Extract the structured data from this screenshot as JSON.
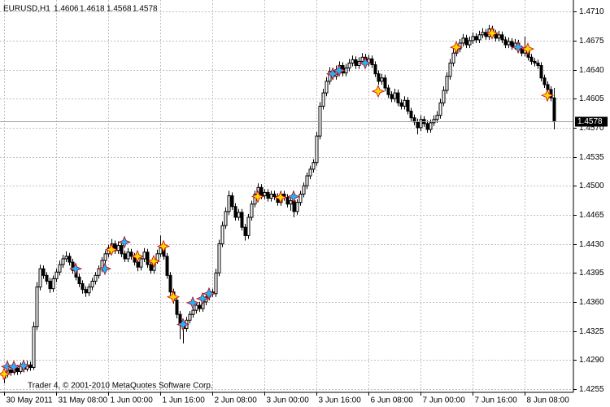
{
  "chart_data": {
    "type": "candlestick",
    "symbol": "EURUSD,H1",
    "watermark": "Trader 4, © 2001-2010 MetaQuotes Software Corp.",
    "last_price": 1.4578,
    "xlim": [
      -1.25,
      175
    ],
    "ylim": [
      1.4251,
      1.4724
    ],
    "yticks": [
      {
        "value": 1.471,
        "label": "1.4710"
      },
      1.4675,
      {
        "value": 1.464,
        "label": "1.4640"
      },
      1.4605,
      {
        "value": 1.457,
        "label": "1.4570"
      },
      1.4535,
      {
        "value": 1.45,
        "label": "1.4500"
      },
      1.4465,
      {
        "value": 1.443,
        "label": "1.4430"
      },
      1.4395,
      {
        "value": 1.436,
        "label": "1.4360"
      },
      1.4325,
      {
        "value": 1.429,
        "label": "1.4290"
      },
      1.4255
    ],
    "xticks": [
      {
        "value": 0,
        "label": "30 May 2011"
      },
      {
        "value": 16,
        "label": "31 May 08:00"
      },
      {
        "value": 32,
        "label": "1 Jun 00:00"
      },
      {
        "value": 48,
        "label": "1 Jun 16:00"
      },
      {
        "value": 64,
        "label": "2 Jun 08:00"
      },
      {
        "value": 80,
        "label": "3 Jun 00:00"
      },
      {
        "value": 96,
        "label": "3 Jun 16:00"
      },
      {
        "value": 112,
        "label": "6 Jun 08:00"
      },
      {
        "value": 128,
        "label": "7 Jun 00:00"
      },
      {
        "value": 144,
        "label": "7 Jun 16:00"
      },
      {
        "value": 160,
        "label": "8 Jun 08:00"
      }
    ],
    "grid": true,
    "up_color": "#ffffff",
    "down_color": "#000000",
    "ohlc": [
      [
        1.4268,
        1.4277,
        1.4262,
        1.4273
      ],
      [
        1.4273,
        1.4282,
        1.4269,
        1.4278
      ],
      [
        1.4278,
        1.4283,
        1.4271,
        1.4275
      ],
      [
        1.4275,
        1.4285,
        1.4272,
        1.428
      ],
      [
        1.428,
        1.4284,
        1.4272,
        1.4276
      ],
      [
        1.4276,
        1.4287,
        1.4273,
        1.4282
      ],
      [
        1.4282,
        1.4286,
        1.4275,
        1.4279
      ],
      [
        1.4279,
        1.4289,
        1.4276,
        1.4284
      ],
      [
        1.4284,
        1.4288,
        1.4277,
        1.4281
      ],
      [
        1.4281,
        1.4336,
        1.4278,
        1.433
      ],
      [
        1.433,
        1.4384,
        1.4326,
        1.4378
      ],
      [
        1.4378,
        1.4405,
        1.4374,
        1.44
      ],
      [
        1.44,
        1.4404,
        1.4388,
        1.4392
      ],
      [
        1.4392,
        1.4396,
        1.4381,
        1.4385
      ],
      [
        1.4385,
        1.4389,
        1.4371,
        1.4376
      ],
      [
        1.4376,
        1.4392,
        1.4372,
        1.4388
      ],
      [
        1.4388,
        1.44,
        1.4384,
        1.4396
      ],
      [
        1.4396,
        1.441,
        1.4392,
        1.4405
      ],
      [
        1.4405,
        1.4417,
        1.4401,
        1.4412
      ],
      [
        1.4412,
        1.4421,
        1.4408,
        1.4415
      ],
      [
        1.4415,
        1.4419,
        1.4404,
        1.4408
      ],
      [
        1.4408,
        1.4412,
        1.4394,
        1.4398
      ],
      [
        1.4398,
        1.4402,
        1.4386,
        1.439
      ],
      [
        1.439,
        1.4394,
        1.4378,
        1.4382
      ],
      [
        1.4382,
        1.4386,
        1.437,
        1.4375
      ],
      [
        1.4375,
        1.4379,
        1.4366,
        1.4371
      ],
      [
        1.4371,
        1.4382,
        1.4367,
        1.4378
      ],
      [
        1.4378,
        1.4389,
        1.4374,
        1.4385
      ],
      [
        1.4385,
        1.4396,
        1.4381,
        1.4392
      ],
      [
        1.4392,
        1.4404,
        1.4388,
        1.44
      ],
      [
        1.44,
        1.4414,
        1.4396,
        1.441
      ],
      [
        1.441,
        1.4422,
        1.4406,
        1.4418
      ],
      [
        1.4418,
        1.4429,
        1.4414,
        1.4425
      ],
      [
        1.4425,
        1.4436,
        1.4421,
        1.443
      ],
      [
        1.443,
        1.4434,
        1.4418,
        1.4422
      ],
      [
        1.4422,
        1.4433,
        1.4418,
        1.4428
      ],
      [
        1.4428,
        1.4432,
        1.4414,
        1.4418
      ],
      [
        1.4418,
        1.4422,
        1.4408,
        1.4412
      ],
      [
        1.4412,
        1.4425,
        1.4408,
        1.442
      ],
      [
        1.442,
        1.4424,
        1.4411,
        1.4415
      ],
      [
        1.4415,
        1.4419,
        1.4404,
        1.4408
      ],
      [
        1.4408,
        1.4412,
        1.4397,
        1.4402
      ],
      [
        1.4402,
        1.4416,
        1.4398,
        1.4412
      ],
      [
        1.4412,
        1.4425,
        1.4408,
        1.442
      ],
      [
        1.442,
        1.4424,
        1.4401,
        1.4405
      ],
      [
        1.4405,
        1.4409,
        1.4394,
        1.4398
      ],
      [
        1.4398,
        1.4414,
        1.4394,
        1.441
      ],
      [
        1.441,
        1.4423,
        1.4406,
        1.4418
      ],
      [
        1.4418,
        1.444,
        1.4414,
        1.4425
      ],
      [
        1.4425,
        1.4429,
        1.4411,
        1.4415
      ],
      [
        1.4415,
        1.4419,
        1.4388,
        1.4392
      ],
      [
        1.4392,
        1.4396,
        1.4368,
        1.4372
      ],
      [
        1.4372,
        1.4376,
        1.4358,
        1.4362
      ],
      [
        1.4362,
        1.4366,
        1.434,
        1.4345
      ],
      [
        1.4345,
        1.4349,
        1.4315,
        1.4332
      ],
      [
        1.4332,
        1.4336,
        1.431,
        1.4328
      ],
      [
        1.4328,
        1.4342,
        1.4324,
        1.4338
      ],
      [
        1.4338,
        1.4349,
        1.4334,
        1.4345
      ],
      [
        1.4345,
        1.4354,
        1.4341,
        1.435
      ],
      [
        1.435,
        1.436,
        1.4346,
        1.4356
      ],
      [
        1.4356,
        1.436,
        1.4348,
        1.4352
      ],
      [
        1.4352,
        1.4364,
        1.4348,
        1.436
      ],
      [
        1.436,
        1.437,
        1.4356,
        1.4366
      ],
      [
        1.4366,
        1.4376,
        1.4362,
        1.4372
      ],
      [
        1.4372,
        1.4376,
        1.4366,
        1.437
      ],
      [
        1.437,
        1.44,
        1.4366,
        1.4395
      ],
      [
        1.4395,
        1.4435,
        1.4391,
        1.443
      ],
      [
        1.443,
        1.4457,
        1.4426,
        1.4452
      ],
      [
        1.4452,
        1.4474,
        1.4448,
        1.4469
      ],
      [
        1.4469,
        1.4494,
        1.4465,
        1.4488
      ],
      [
        1.4488,
        1.4492,
        1.4471,
        1.4475
      ],
      [
        1.4475,
        1.4479,
        1.4458,
        1.4462
      ],
      [
        1.4462,
        1.4472,
        1.4458,
        1.4468
      ],
      [
        1.4468,
        1.4472,
        1.4446,
        1.445
      ],
      [
        1.445,
        1.4454,
        1.4434,
        1.444
      ],
      [
        1.444,
        1.4466,
        1.4436,
        1.4462
      ],
      [
        1.4462,
        1.4482,
        1.4458,
        1.4478
      ],
      [
        1.4478,
        1.4494,
        1.4474,
        1.449
      ],
      [
        1.449,
        1.4503,
        1.4486,
        1.4498
      ],
      [
        1.4498,
        1.4502,
        1.4484,
        1.4488
      ],
      [
        1.4488,
        1.4496,
        1.4484,
        1.4492
      ],
      [
        1.4492,
        1.4496,
        1.4481,
        1.4485
      ],
      [
        1.4485,
        1.4494,
        1.4481,
        1.449
      ],
      [
        1.449,
        1.4494,
        1.4483,
        1.4487
      ],
      [
        1.4487,
        1.4491,
        1.4476,
        1.448
      ],
      [
        1.448,
        1.4494,
        1.4476,
        1.449
      ],
      [
        1.449,
        1.4494,
        1.4482,
        1.4486
      ],
      [
        1.4486,
        1.449,
        1.4474,
        1.4478
      ],
      [
        1.4478,
        1.4486,
        1.447,
        1.4482
      ],
      [
        1.4482,
        1.4486,
        1.4462,
        1.4469
      ],
      [
        1.4469,
        1.4484,
        1.4465,
        1.448
      ],
      [
        1.448,
        1.4494,
        1.4476,
        1.449
      ],
      [
        1.449,
        1.4504,
        1.4486,
        1.45
      ],
      [
        1.45,
        1.4516,
        1.4496,
        1.4512
      ],
      [
        1.4512,
        1.4524,
        1.4508,
        1.452
      ],
      [
        1.452,
        1.4532,
        1.4516,
        1.4528
      ],
      [
        1.4528,
        1.4565,
        1.4524,
        1.456
      ],
      [
        1.456,
        1.4601,
        1.4556,
        1.4596
      ],
      [
        1.4596,
        1.4617,
        1.4592,
        1.4612
      ],
      [
        1.4612,
        1.4631,
        1.4608,
        1.4626
      ],
      [
        1.4626,
        1.4643,
        1.4622,
        1.4638
      ],
      [
        1.4638,
        1.4642,
        1.4628,
        1.4632
      ],
      [
        1.4632,
        1.4645,
        1.4628,
        1.464
      ],
      [
        1.464,
        1.465,
        1.4636,
        1.4645
      ],
      [
        1.4645,
        1.4649,
        1.4632,
        1.4636
      ],
      [
        1.4636,
        1.4647,
        1.4632,
        1.4642
      ],
      [
        1.4642,
        1.4653,
        1.4638,
        1.4648
      ],
      [
        1.4648,
        1.4657,
        1.4644,
        1.4652
      ],
      [
        1.4652,
        1.4656,
        1.4641,
        1.4645
      ],
      [
        1.4645,
        1.4655,
        1.4641,
        1.465
      ],
      [
        1.465,
        1.466,
        1.4646,
        1.4655
      ],
      [
        1.4655,
        1.4659,
        1.4644,
        1.4648
      ],
      [
        1.4648,
        1.4658,
        1.4644,
        1.4653
      ],
      [
        1.4653,
        1.4657,
        1.4642,
        1.4646
      ],
      [
        1.4646,
        1.465,
        1.4631,
        1.4635
      ],
      [
        1.4635,
        1.4639,
        1.4622,
        1.4626
      ],
      [
        1.4626,
        1.4635,
        1.4622,
        1.463
      ],
      [
        1.463,
        1.4634,
        1.4614,
        1.4618
      ],
      [
        1.4618,
        1.4622,
        1.4606,
        1.461
      ],
      [
        1.461,
        1.4614,
        1.4601,
        1.4605
      ],
      [
        1.4605,
        1.4617,
        1.4601,
        1.4612
      ],
      [
        1.4612,
        1.4616,
        1.4596,
        1.46
      ],
      [
        1.46,
        1.4604,
        1.4592,
        1.4596
      ],
      [
        1.4596,
        1.4608,
        1.4592,
        1.4603
      ],
      [
        1.4603,
        1.4607,
        1.4586,
        1.459
      ],
      [
        1.459,
        1.4594,
        1.4578,
        1.4582
      ],
      [
        1.4582,
        1.4586,
        1.4573,
        1.4577
      ],
      [
        1.4577,
        1.4581,
        1.4562,
        1.457
      ],
      [
        1.457,
        1.4585,
        1.4566,
        1.458
      ],
      [
        1.458,
        1.4584,
        1.4571,
        1.4575
      ],
      [
        1.4575,
        1.4579,
        1.4564,
        1.4568
      ],
      [
        1.4568,
        1.458,
        1.4564,
        1.4576
      ],
      [
        1.4576,
        1.4585,
        1.4572,
        1.458
      ],
      [
        1.458,
        1.459,
        1.4576,
        1.4585
      ],
      [
        1.4585,
        1.4605,
        1.4581,
        1.46
      ],
      [
        1.46,
        1.462,
        1.4596,
        1.4615
      ],
      [
        1.4615,
        1.4637,
        1.4611,
        1.4632
      ],
      [
        1.4632,
        1.4653,
        1.4628,
        1.4648
      ],
      [
        1.4648,
        1.4665,
        1.4644,
        1.466
      ],
      [
        1.466,
        1.467,
        1.4656,
        1.4665
      ],
      [
        1.4665,
        1.4677,
        1.4661,
        1.4672
      ],
      [
        1.4672,
        1.4683,
        1.4668,
        1.4678
      ],
      [
        1.4678,
        1.4682,
        1.4666,
        1.467
      ],
      [
        1.467,
        1.468,
        1.4666,
        1.4675
      ],
      [
        1.4675,
        1.4685,
        1.4671,
        1.468
      ],
      [
        1.468,
        1.4684,
        1.4672,
        1.4676
      ],
      [
        1.4676,
        1.4687,
        1.4672,
        1.4682
      ],
      [
        1.4682,
        1.469,
        1.4678,
        1.4685
      ],
      [
        1.4685,
        1.4689,
        1.4676,
        1.468
      ],
      [
        1.468,
        1.4694,
        1.4676,
        1.4689
      ],
      [
        1.4689,
        1.4693,
        1.468,
        1.4684
      ],
      [
        1.4684,
        1.4688,
        1.4674,
        1.4678
      ],
      [
        1.4678,
        1.4687,
        1.4674,
        1.4682
      ],
      [
        1.4682,
        1.4686,
        1.4672,
        1.4676
      ],
      [
        1.4676,
        1.468,
        1.4666,
        1.467
      ],
      [
        1.467,
        1.4679,
        1.4666,
        1.4674
      ],
      [
        1.4674,
        1.4678,
        1.4664,
        1.4668
      ],
      [
        1.4668,
        1.4677,
        1.4664,
        1.4672
      ],
      [
        1.4672,
        1.4676,
        1.4661,
        1.4665
      ],
      [
        1.4665,
        1.4669,
        1.4656,
        1.466
      ],
      [
        1.466,
        1.468,
        1.4656,
        1.4665
      ],
      [
        1.4665,
        1.4669,
        1.4651,
        1.4655
      ],
      [
        1.4655,
        1.4659,
        1.4646,
        1.465
      ],
      [
        1.465,
        1.4654,
        1.4644,
        1.4648
      ],
      [
        1.4648,
        1.4652,
        1.4641,
        1.4645
      ],
      [
        1.4645,
        1.4649,
        1.4626,
        1.463
      ],
      [
        1.463,
        1.4634,
        1.4618,
        1.4622
      ],
      [
        1.4622,
        1.4626,
        1.4612,
        1.4616
      ],
      [
        1.4616,
        1.462,
        1.4602,
        1.4606
      ],
      [
        1.4606,
        1.4618,
        1.4568,
        1.4578
      ]
    ],
    "markers": [
      {
        "color": "#1eb4ff",
        "x": [
          1,
          3,
          6,
          22,
          31,
          37,
          55,
          58,
          61,
          63,
          89,
          101,
          103,
          111,
          158
        ],
        "y": [
          1.4282,
          1.4282,
          1.4283,
          1.44,
          1.44,
          1.4432,
          1.4333,
          1.4359,
          1.4364,
          1.437,
          1.4487,
          1.4635,
          1.4639,
          1.4648,
          1.4667
        ]
      },
      {
        "color": "#ffd700",
        "x": [
          0,
          33,
          41,
          46,
          49,
          52,
          78,
          85,
          115,
          139,
          150,
          161,
          167
        ],
        "y": [
          1.4273,
          1.4423,
          1.4415,
          1.4409,
          1.4427,
          1.4366,
          1.4487,
          1.4486,
          1.4614,
          1.4667,
          1.4684,
          1.4665,
          1.4609
        ]
      }
    ]
  }
}
